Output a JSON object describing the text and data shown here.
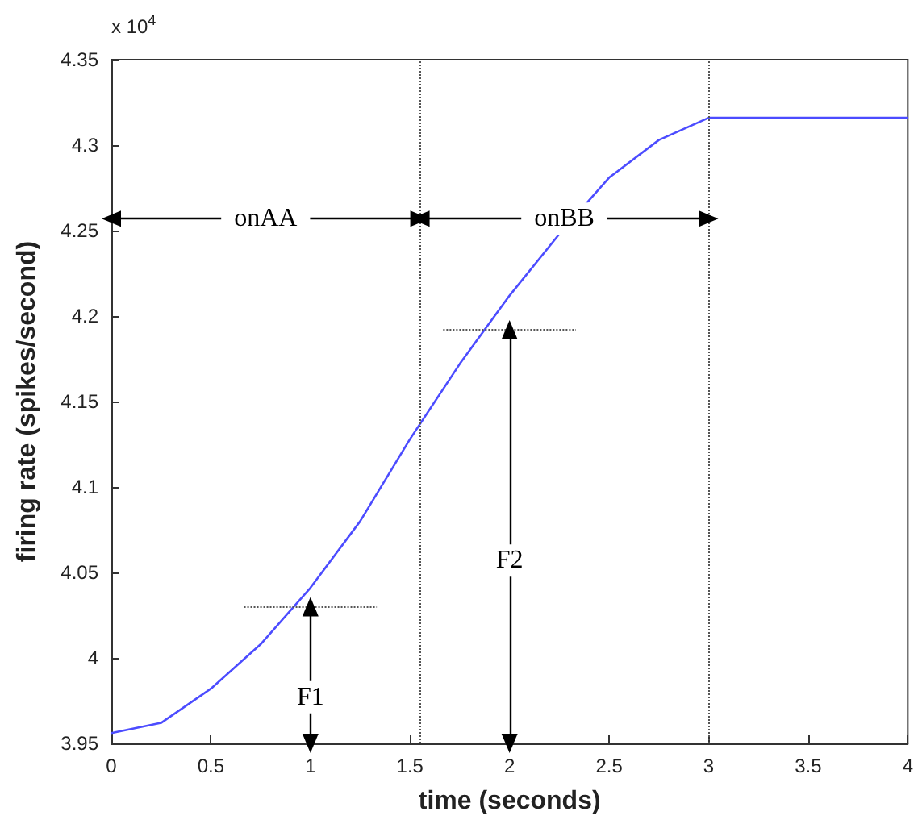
{
  "chart_data": {
    "type": "line",
    "xlabel": "time (seconds)",
    "ylabel": "firing rate (spikes/second)",
    "x": [
      0,
      0.25,
      0.5,
      0.75,
      1,
      1.25,
      1.5,
      1.75,
      2,
      2.25,
      2.5,
      2.75,
      3,
      4
    ],
    "series": [
      {
        "color": "#4c4cff",
        "values": [
          3.956,
          3.962,
          3.982,
          4.008,
          4.041,
          4.08,
          4.128,
          4.172,
          4.212,
          4.248,
          4.281,
          4.303,
          4.316,
          4.316
        ]
      }
    ],
    "xlim": [
      0,
      4
    ],
    "xticks": [
      0,
      0.5,
      1,
      1.5,
      2,
      2.5,
      3,
      3.5,
      4
    ],
    "ylim": [
      3.95,
      4.35
    ],
    "yticks": [
      3.95,
      4,
      4.05,
      4.1,
      4.15,
      4.2,
      4.25,
      4.3,
      4.35
    ],
    "grid": false,
    "marker": "none",
    "line_style": "solid",
    "ref_lines": [
      {
        "axis": "x",
        "value": 1.55,
        "color": "#555555",
        "line_style": "dotted"
      },
      {
        "axis": "x",
        "value": 3,
        "color": "#555555",
        "line_style": "dotted"
      },
      {
        "axis": "y",
        "value": 4.03,
        "color": "#555555",
        "line_style": "dotted"
      },
      {
        "axis": "y",
        "value": 4.192,
        "color": "#555555",
        "line_style": "dotted"
      }
    ],
    "annotations": [
      "x 10$^{4}$",
      {
        "text": "onAA",
        "x": 1.55,
        "y": 4.257
      },
      {
        "text": "onBB",
        "x": 3,
        "y": 4.257
      },
      {
        "text": "F1",
        "x": 1,
        "y": 3.977
      },
      {
        "text": "F2",
        "x": 2,
        "y": 4.057
      }
    ]
  }
}
